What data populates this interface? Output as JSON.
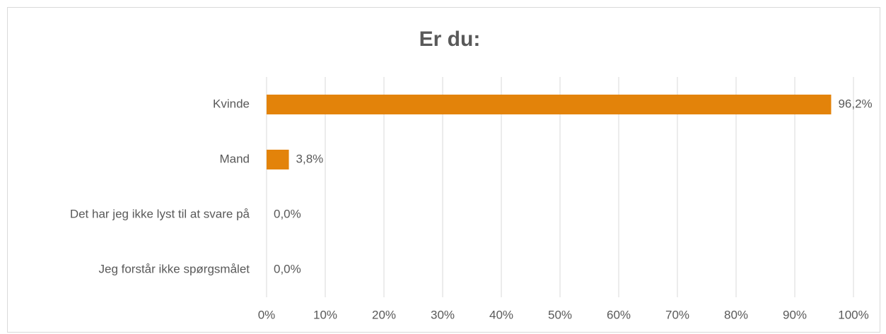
{
  "chart_data": {
    "type": "bar",
    "orientation": "horizontal",
    "title": "Er du:",
    "categories": [
      "Kvinde",
      "Mand",
      "Det har jeg ikke lyst til at svare på",
      "Jeg forstår ikke spørgsmålet"
    ],
    "values": [
      96.2,
      3.8,
      0,
      0
    ],
    "value_labels": [
      "96,2%",
      "3,8%",
      "0,0%",
      "0,0%"
    ],
    "color": "#e3830a",
    "xlim": [
      0,
      100
    ],
    "xticks": [
      {
        "value": 0,
        "label": "0%"
      },
      {
        "value": 10,
        "label": "10%"
      },
      {
        "value": 20,
        "label": "20%"
      },
      {
        "value": 30,
        "label": "30%"
      },
      {
        "value": 40,
        "label": "40%"
      },
      {
        "value": 50,
        "label": "50%"
      },
      {
        "value": 60,
        "label": "60%"
      },
      {
        "value": 70,
        "label": "70%"
      },
      {
        "value": 80,
        "label": "80%"
      },
      {
        "value": 90,
        "label": "90%"
      },
      {
        "value": 100,
        "label": "100%"
      }
    ],
    "grid": true
  }
}
